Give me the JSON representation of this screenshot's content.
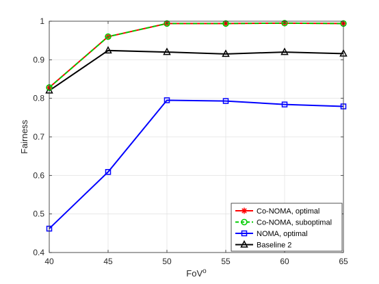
{
  "chart_data": {
    "type": "line",
    "xlabel": "FoV",
    "xlabel_sup": "o",
    "ylabel": "Fairness",
    "xlim": [
      40,
      65
    ],
    "ylim": [
      0.4,
      1.0
    ],
    "x_ticks": [
      40,
      45,
      50,
      55,
      60,
      65
    ],
    "y_ticks": [
      0.4,
      0.5,
      0.6,
      0.7,
      0.8,
      0.9,
      1.0
    ],
    "x_tick_labels": [
      "40",
      "45",
      "50",
      "55",
      "60",
      "65"
    ],
    "y_tick_labels": [
      "0.4",
      "0.5",
      "0.6",
      "0.7",
      "0.8",
      "0.9",
      "1"
    ],
    "grid": true,
    "legend_position": "bottom-right",
    "x": [
      40,
      45,
      50,
      55,
      60,
      65
    ],
    "series": [
      {
        "name": "Co-NOMA, optimal",
        "values": [
          0.828,
          0.96,
          0.994,
          0.994,
          0.995,
          0.994
        ],
        "color": "#ff0000",
        "marker": "asterisk",
        "dash": "solid"
      },
      {
        "name": "Co-NOMA, suboptimal",
        "values": [
          0.828,
          0.96,
          0.994,
          0.994,
          0.995,
          0.994
        ],
        "color": "#00cc00",
        "marker": "circle",
        "dash": "dashed"
      },
      {
        "name": "NOMA, optimal",
        "values": [
          0.462,
          0.609,
          0.795,
          0.793,
          0.784,
          0.779
        ],
        "color": "#0000ff",
        "marker": "square",
        "dash": "solid"
      },
      {
        "name": "Baseline 2",
        "values": [
          0.82,
          0.924,
          0.92,
          0.915,
          0.92,
          0.916
        ],
        "color": "#000000",
        "marker": "triangle",
        "dash": "solid"
      }
    ]
  }
}
